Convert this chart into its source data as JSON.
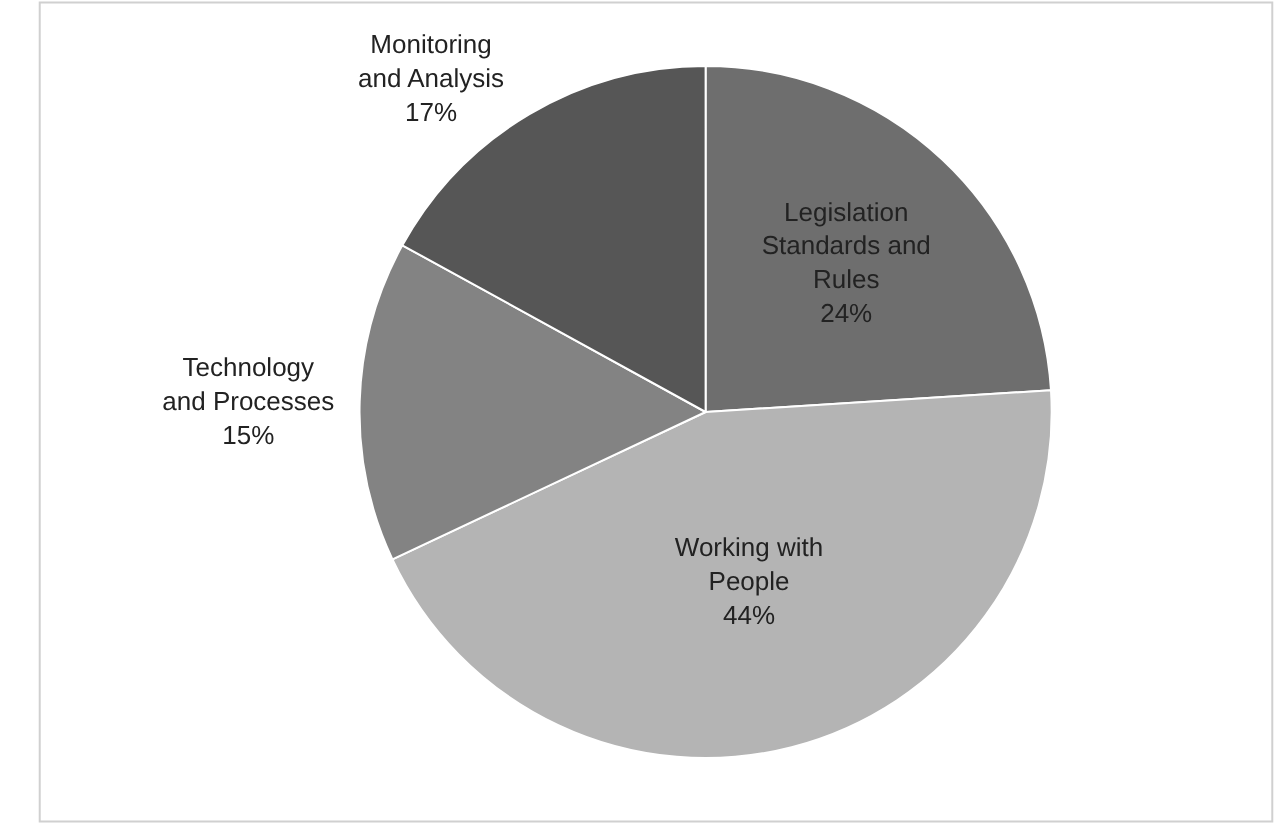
{
  "chart_data": {
    "type": "pie",
    "categories": [
      "Legislation Standards and Rules",
      "Working with People",
      "Technology and Processes",
      "Monitoring and Analysis"
    ],
    "values": [
      24,
      44,
      15,
      17
    ],
    "value_labels": [
      "24%",
      "44%",
      "15%",
      "17%"
    ],
    "colors": [
      "#6e6e6e",
      "#b4b4b4",
      "#838383",
      "#565656"
    ],
    "legend": false
  }
}
